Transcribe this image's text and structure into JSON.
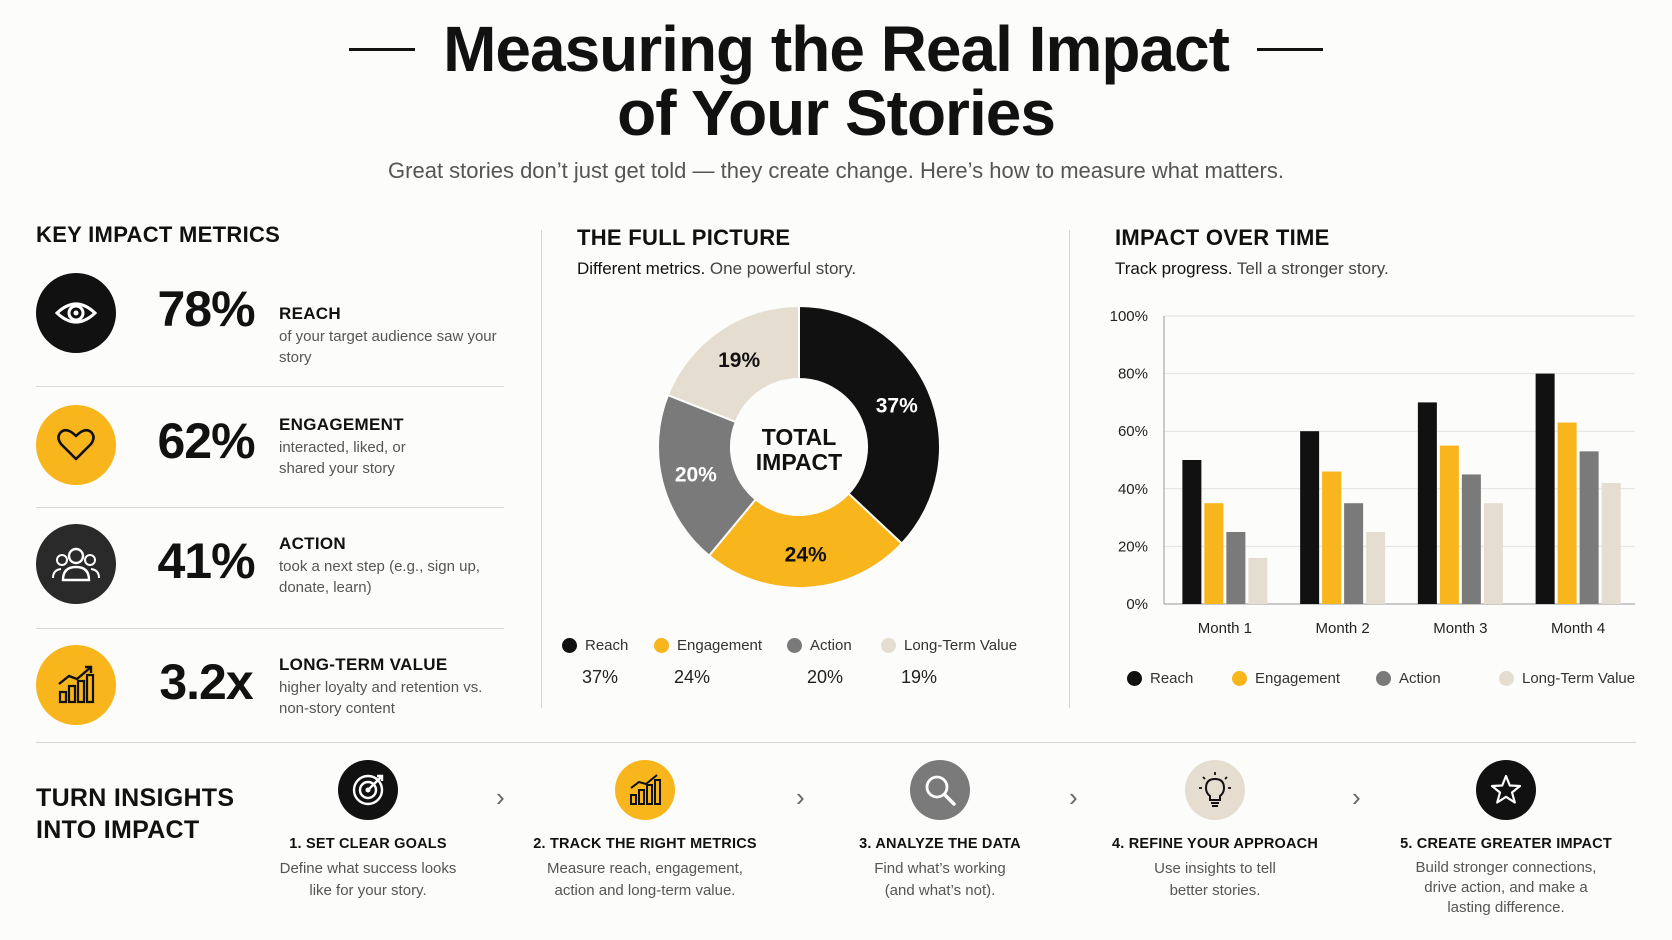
{
  "header": {
    "title_line1": "Measuring the Real Impact",
    "title_line2": "of Your Stories",
    "subtitle": "Great stories don’t just get told — they create change. Here’s how to measure what matters."
  },
  "kpis": {
    "heading": "KEY IMPACT METRICS",
    "items": [
      {
        "icon": "eye-icon",
        "value": "78%",
        "label": "REACH",
        "desc": "of your target audience saw your story"
      },
      {
        "icon": "heart-icon",
        "value": "62%",
        "label": "ENGAGEMENT",
        "desc": "interacted, liked, or shared your story"
      },
      {
        "icon": "people-icon",
        "value": "41%",
        "label": "ACTION",
        "desc": "took a next step (e.g., sign up, donate, learn)"
      },
      {
        "icon": "growth-chart-icon",
        "value": "3.2x",
        "label": "LONG-TERM VALUE",
        "desc": "higher loyalty and retention vs. non-story content"
      }
    ]
  },
  "donut": {
    "heading": "THE FULL PICTURE",
    "sub_strong": "Different metrics.",
    "sub_rest": "One powerful story.",
    "center_line1": "TOTAL",
    "center_line2": "IMPACT"
  },
  "bars": {
    "heading": "IMPACT OVER TIME",
    "sub_strong": "Track progress.",
    "sub_rest": "Tell a stronger story."
  },
  "colors": {
    "reach": "#111111",
    "engagement": "#f8b51c",
    "action": "#7a7a7a",
    "long_term": "#e4ddd0"
  },
  "chart_data": [
    {
      "type": "pie",
      "title": "THE FULL PICTURE",
      "categories": [
        "Reach",
        "Engagement",
        "Action",
        "Long-Term Value"
      ],
      "values": [
        37,
        24,
        20,
        19
      ],
      "slice_labels": [
        "37%",
        "24%",
        "20%",
        "19%"
      ],
      "donut": true,
      "center_text": "TOTAL IMPACT",
      "legend": "bottom"
    },
    {
      "type": "bar",
      "title": "IMPACT OVER TIME",
      "categories": [
        "Month 1",
        "Month 2",
        "Month 3",
        "Month 4"
      ],
      "series": [
        {
          "name": "Reach",
          "values": [
            50,
            60,
            70,
            80
          ]
        },
        {
          "name": "Engagement",
          "values": [
            35,
            46,
            55,
            63
          ]
        },
        {
          "name": "Action",
          "values": [
            25,
            35,
            45,
            53
          ]
        },
        {
          "name": "Long-Term Value",
          "values": [
            16,
            25,
            35,
            42
          ]
        }
      ],
      "ylim": [
        0,
        100
      ],
      "yticks": [
        "0%",
        "20%",
        "40%",
        "60%",
        "80%",
        "100%"
      ],
      "grid": true,
      "legend": "bottom"
    }
  ],
  "steps": {
    "heading_line1": "TURN INSIGHTS",
    "heading_line2": "INTO IMPACT",
    "arrow": "›",
    "items": [
      {
        "icon": "target-icon",
        "title": "1. SET CLEAR GOALS",
        "desc": "Define what success looks like for your story."
      },
      {
        "icon": "bar-growth-icon",
        "title": "2. TRACK THE RIGHT METRICS",
        "desc": "Measure reach, engagement, action and long-term value."
      },
      {
        "icon": "magnifier-icon",
        "title": "3. ANALYZE THE DATA",
        "desc": "Find what’s working (and what’s not)."
      },
      {
        "icon": "lightbulb-icon",
        "title": "4. REFINE YOUR APPROACH",
        "desc": "Use insights to tell better stories."
      },
      {
        "icon": "star-icon",
        "title": "5. CREATE GREATER IMPACT",
        "desc": "Build stronger connections, drive action, and make a lasting difference."
      }
    ]
  }
}
